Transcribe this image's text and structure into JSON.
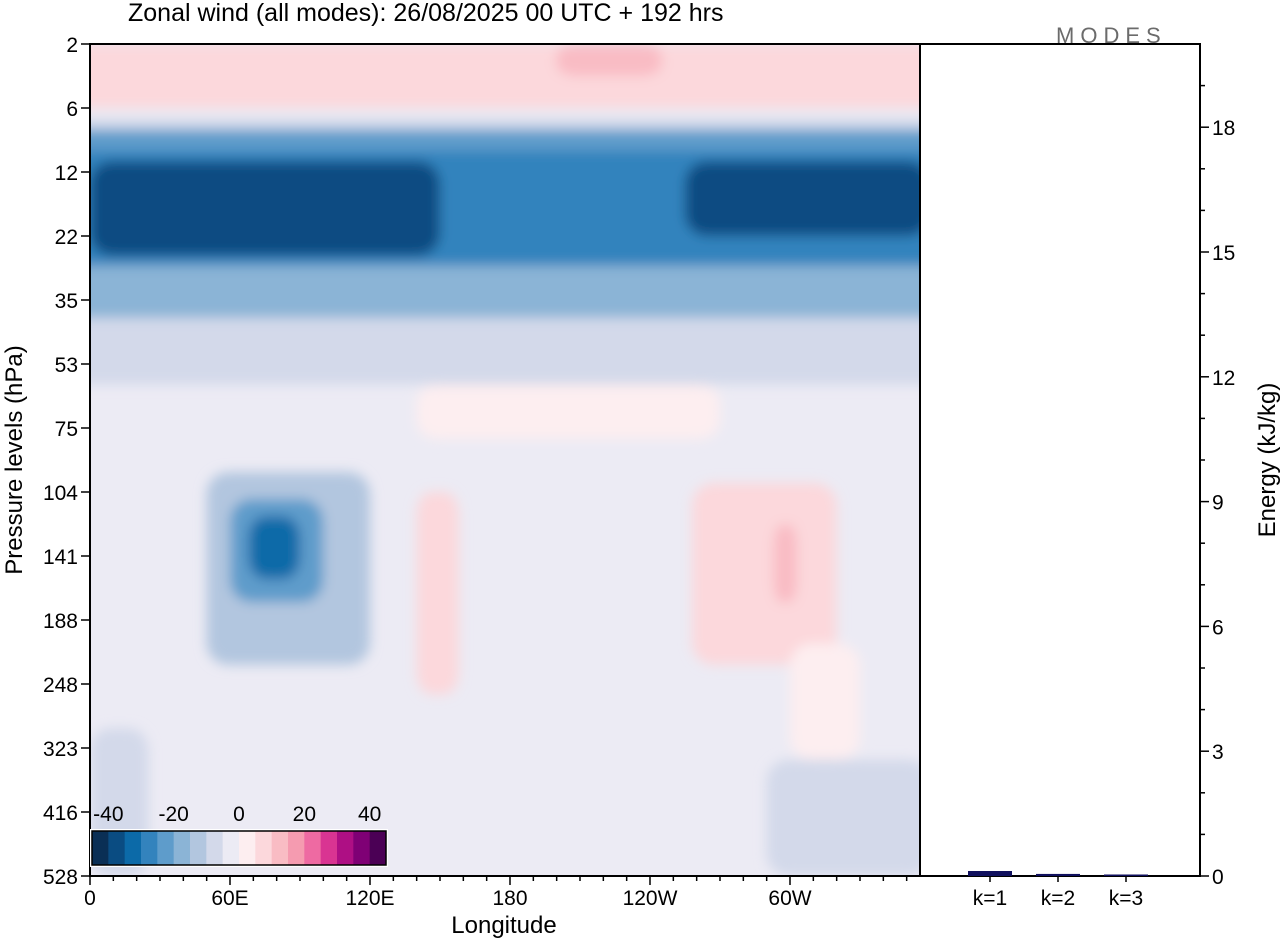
{
  "chart_data": [
    {
      "type": "heatmap",
      "title": "Zonal wind (all modes):  26/08/2025  00 UTC  + 192 hrs",
      "xlabel": "Longitude",
      "ylabel": "Pressure levels (hPa)",
      "x_ticks": [
        "0",
        "60E",
        "120E",
        "180",
        "120W",
        "60W"
      ],
      "y_ticks": [
        "2",
        "6",
        "12",
        "22",
        "35",
        "53",
        "75",
        "104",
        "141",
        "188",
        "248",
        "323",
        "416",
        "528"
      ],
      "colorbar": {
        "tick_labels": [
          "-40",
          "-20",
          "0",
          "20",
          "40"
        ],
        "range": [
          -45,
          45
        ],
        "colors": [
          "#0a2f55",
          "#0a4c82",
          "#0c6aa8",
          "#3383bd",
          "#5e9ccb",
          "#8bb4d6",
          "#b2c6df",
          "#d3d9ea",
          "#ecebf4",
          "#fdeef0",
          "#fcd8dc",
          "#f9bcc4",
          "#f59bb0",
          "#ee6aa2",
          "#d93492",
          "#ae0f84",
          "#7f0075",
          "#4b0055"
        ]
      },
      "regions": [
        {
          "value": 8,
          "lon": [
            0,
            360
          ],
          "p": [
            2,
            6
          ]
        },
        {
          "value": 14,
          "lon": [
            200,
            245
          ],
          "p": [
            2,
            4
          ]
        },
        {
          "value": 5,
          "lon": [
            20,
            60
          ],
          "p": [
            2,
            4
          ]
        },
        {
          "value": -10,
          "lon": [
            0,
            360
          ],
          "p": [
            7,
            10
          ]
        },
        {
          "value": -22,
          "lon": [
            0,
            360
          ],
          "p": [
            8,
            12
          ]
        },
        {
          "value": -30,
          "lon": [
            0,
            360
          ],
          "p": [
            10,
            30
          ]
        },
        {
          "value": -36,
          "lon": [
            0,
            150
          ],
          "p": [
            11,
            26
          ]
        },
        {
          "value": -36,
          "lon": [
            255,
            360
          ],
          "p": [
            11,
            22
          ]
        },
        {
          "value": -40,
          "lon": [
            340,
            360
          ],
          "p": [
            12,
            16
          ]
        },
        {
          "value": -20,
          "lon": [
            0,
            360
          ],
          "p": [
            28,
            45
          ]
        },
        {
          "value": -8,
          "lon": [
            0,
            360
          ],
          "p": [
            40,
            60
          ]
        },
        {
          "value": 4,
          "lon": [
            140,
            270
          ],
          "p": [
            60,
            80
          ]
        },
        {
          "value": -12,
          "lon": [
            50,
            120
          ],
          "p": [
            95,
            230
          ]
        },
        {
          "value": -22,
          "lon": [
            60,
            100
          ],
          "p": [
            108,
            175
          ]
        },
        {
          "value": -32,
          "lon": [
            68,
            90
          ],
          "p": [
            118,
            158
          ]
        },
        {
          "value": 8,
          "lon": [
            140,
            158
          ],
          "p": [
            104,
            260
          ]
        },
        {
          "value": 8,
          "lon": [
            258,
            320
          ],
          "p": [
            100,
            230
          ]
        },
        {
          "value": 14,
          "lon": [
            293,
            303
          ],
          "p": [
            123,
            175
          ]
        },
        {
          "value": 4,
          "lon": [
            300,
            330
          ],
          "p": [
            210,
            340
          ]
        },
        {
          "value": -8,
          "lon": [
            0,
            25
          ],
          "p": [
            300,
            528
          ]
        },
        {
          "value": -8,
          "lon": [
            290,
            360
          ],
          "p": [
            340,
            528
          ]
        }
      ]
    },
    {
      "type": "bar",
      "ylabel": "Energy (kJ/kg)",
      "categories": [
        "k=1",
        "k=2",
        "k=3"
      ],
      "values": [
        0.12,
        0.05,
        0.02
      ],
      "ylim": [
        0,
        20
      ],
      "y_ticks": [
        "0",
        "3",
        "6",
        "9",
        "12",
        "15",
        "18"
      ],
      "bar_color": "#10105e"
    }
  ],
  "logo": "MODES"
}
